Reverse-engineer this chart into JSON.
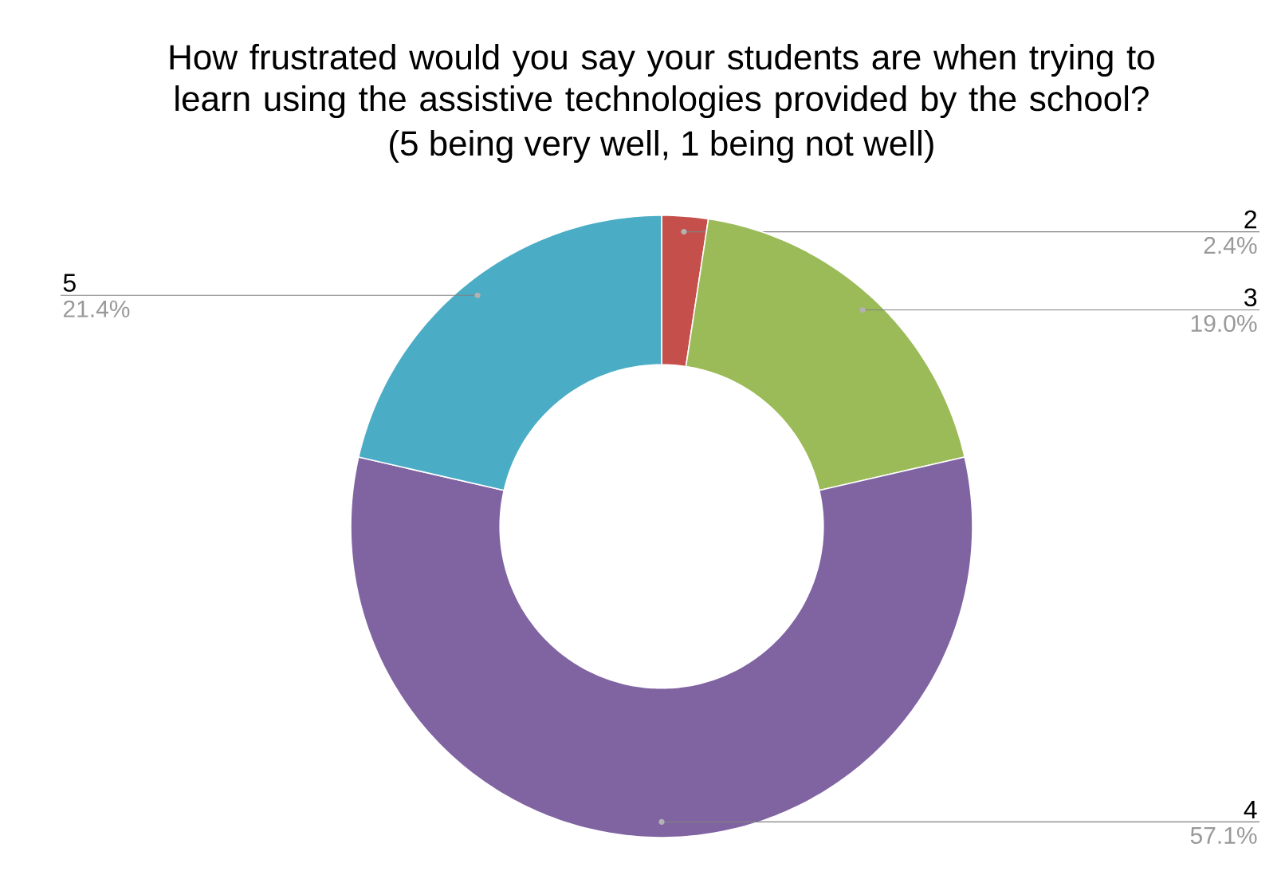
{
  "chart_data": {
    "type": "donut",
    "title": "How frustrated would you say your students are when trying to learn using the assistive technologies provided by the school?",
    "subtitle": "(5 being very well, 1 being not well)",
    "categories": [
      "2",
      "3",
      "4",
      "5"
    ],
    "values": [
      2.4,
      19.0,
      57.1,
      21.4
    ],
    "colors": [
      "#c5504b",
      "#9bbb59",
      "#8064a2",
      "#4bacc6"
    ],
    "value_labels": [
      "2.4%",
      "19.0%",
      "57.1%",
      "21.4%"
    ]
  }
}
